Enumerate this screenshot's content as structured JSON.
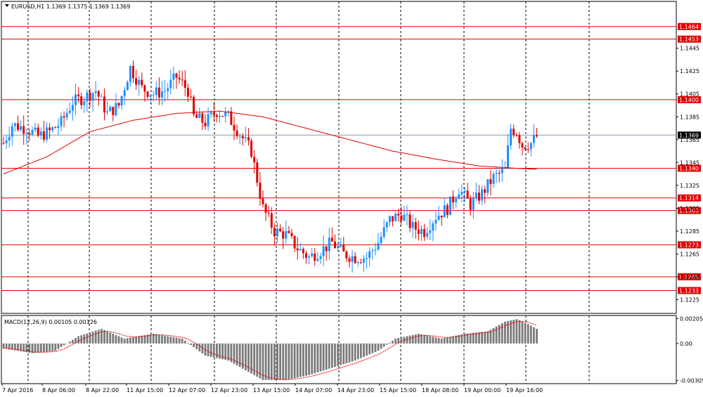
{
  "chart_data": {
    "type": "candlestick",
    "symbol": "EURUSD,H1",
    "quote": "1.1369 1.1375 1.1369 1.1369",
    "title": "EURUSD,H1  1.1369 1.1375 1.1369 1.1369",
    "price_axis": {
      "min": 1.1213,
      "max": 1.1486,
      "ticks": [
        "1.1445",
        "1.1425",
        "1.1405",
        "1.1385",
        "1.1365",
        "1.1345",
        "1.1325",
        "1.1305",
        "1.1285",
        "1.1265",
        "1.1245",
        "1.1225"
      ]
    },
    "current_price": "1.1369",
    "levels": [
      "1.1464",
      "1.1453",
      "1.1400",
      "1.1340",
      "1.1314",
      "1.1303",
      "1.1273",
      "1.1245",
      "1.1233"
    ],
    "time_labels": [
      "7 Apr 2016",
      "8 Apr 06:00",
      "8 Apr 22:00",
      "11 Apr 15:00",
      "12 Apr 07:00",
      "12 Apr 23:00",
      "13 Apr 15:00",
      "14 Apr 07:00",
      "14 Apr 23:00",
      "15 Apr 15:00",
      "18 Apr 08:00",
      "19 Apr 00:00",
      "19 Apr 16:00"
    ],
    "price_anchors": [
      [
        0,
        1.1362
      ],
      [
        3,
        1.1378
      ],
      [
        8,
        1.1375
      ],
      [
        12,
        1.1368
      ],
      [
        16,
        1.1372
      ],
      [
        20,
        1.138
      ],
      [
        24,
        1.1398
      ],
      [
        28,
        1.1402
      ],
      [
        32,
        1.1408
      ],
      [
        36,
        1.1388
      ],
      [
        40,
        1.1395
      ],
      [
        44,
        1.1428
      ],
      [
        48,
        1.141
      ],
      [
        52,
        1.1405
      ],
      [
        56,
        1.1408
      ],
      [
        60,
        1.142
      ],
      [
        64,
        1.1408
      ],
      [
        66,
        1.1385
      ],
      [
        70,
        1.138
      ],
      [
        74,
        1.139
      ],
      [
        78,
        1.1385
      ],
      [
        82,
        1.137
      ],
      [
        86,
        1.1355
      ],
      [
        88,
        1.133
      ],
      [
        90,
        1.1305
      ],
      [
        94,
        1.1285
      ],
      [
        98,
        1.1282
      ],
      [
        102,
        1.127
      ],
      [
        106,
        1.1262
      ],
      [
        110,
        1.1268
      ],
      [
        114,
        1.1275
      ],
      [
        118,
        1.1265
      ],
      [
        122,
        1.1262
      ],
      [
        126,
        1.1262
      ],
      [
        130,
        1.1275
      ],
      [
        134,
        1.1295
      ],
      [
        138,
        1.13
      ],
      [
        142,
        1.1288
      ],
      [
        146,
        1.1285
      ],
      [
        150,
        1.1298
      ],
      [
        154,
        1.1305
      ],
      [
        158,
        1.1322
      ],
      [
        162,
        1.1308
      ],
      [
        166,
        1.1318
      ],
      [
        170,
        1.1332
      ],
      [
        174,
        1.1338
      ],
      [
        176,
        1.1375
      ],
      [
        178,
        1.1372
      ],
      [
        180,
        1.136
      ],
      [
        183,
        1.1362
      ],
      [
        185,
        1.1368
      ]
    ],
    "ma_anchors": [
      [
        0,
        1.1335
      ],
      [
        15,
        1.135
      ],
      [
        30,
        1.1372
      ],
      [
        45,
        1.1382
      ],
      [
        60,
        1.1388
      ],
      [
        75,
        1.139
      ],
      [
        90,
        1.1385
      ],
      [
        105,
        1.1375
      ],
      [
        120,
        1.1365
      ],
      [
        135,
        1.1355
      ],
      [
        150,
        1.1348
      ],
      [
        165,
        1.1342
      ],
      [
        178,
        1.134
      ],
      [
        185,
        1.1339
      ]
    ],
    "macd": {
      "label": "MACD(12,26,9) 0.00105 0.00126",
      "min": -0.0033,
      "max": 0.0023,
      "ticks": [
        "0.00205",
        "0.00",
        "-0.00305"
      ],
      "anchors": [
        [
          0,
          -0.0004
        ],
        [
          10,
          -0.0008
        ],
        [
          18,
          -0.0006
        ],
        [
          26,
          0.0006
        ],
        [
          34,
          0.0012
        ],
        [
          42,
          0.0004
        ],
        [
          52,
          0.0008
        ],
        [
          62,
          0.0004
        ],
        [
          70,
          -0.001
        ],
        [
          78,
          -0.0014
        ],
        [
          84,
          -0.0022
        ],
        [
          90,
          -0.003
        ],
        [
          98,
          -0.003
        ],
        [
          106,
          -0.0026
        ],
        [
          114,
          -0.002
        ],
        [
          122,
          -0.0014
        ],
        [
          130,
          -0.0006
        ],
        [
          136,
          0.0004
        ],
        [
          144,
          0.0008
        ],
        [
          152,
          0.0004
        ],
        [
          160,
          0.0008
        ],
        [
          168,
          0.001
        ],
        [
          174,
          0.0018
        ],
        [
          178,
          0.002
        ],
        [
          182,
          0.0016
        ],
        [
          185,
          0.0012
        ]
      ]
    }
  }
}
